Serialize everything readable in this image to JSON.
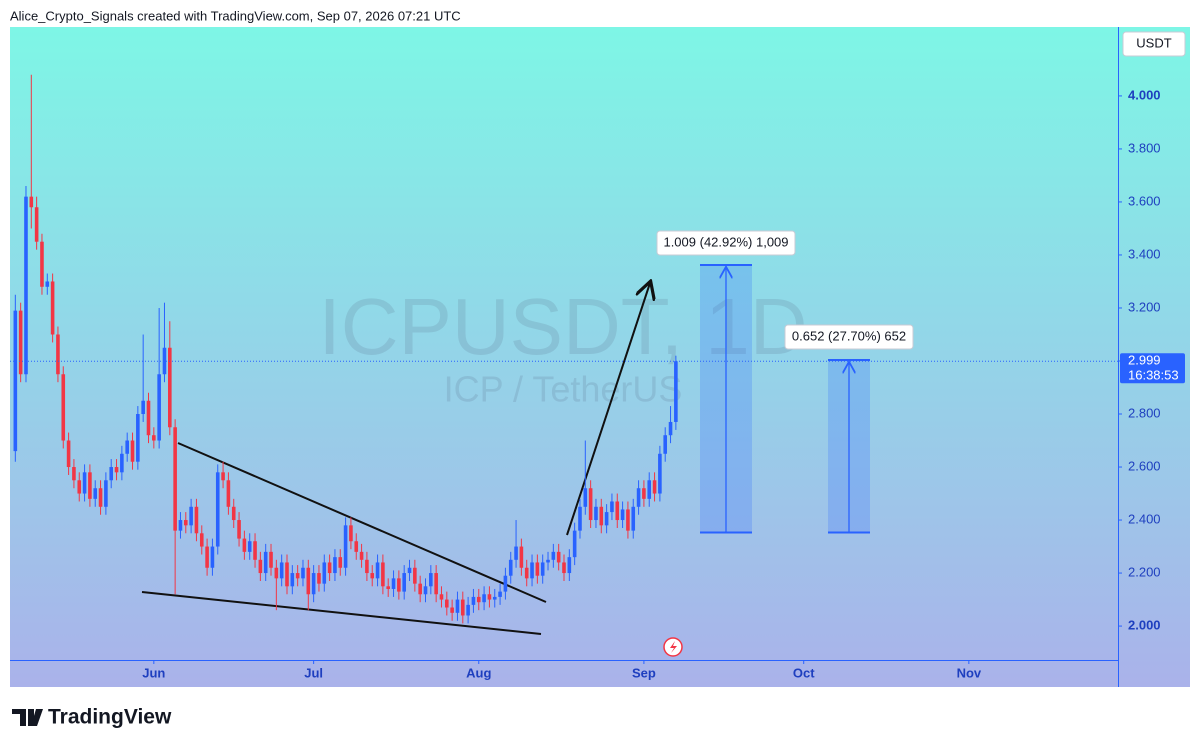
{
  "header": "Alice_Crypto_Signals created with TradingView.com, Sep 07, 2026 07:21 UTC",
  "logo": "TradingView",
  "chart_data": {
    "type": "candlestick",
    "title": "ICPUSDT, 1D",
    "subtitle": "ICP / TetherUS",
    "currency": "USDT",
    "up_color": "#2962ff",
    "down_color": "#f23645",
    "last_price": 2.999,
    "countdown": "16:38:53",
    "annotations": [
      "1.009 (42.92%) 1,009",
      "0.652 (27.70%) 652"
    ],
    "xlim": [
      0,
      208
    ],
    "xticks": [
      {
        "value": 27,
        "label": "Jun"
      },
      {
        "value": 57,
        "label": "Jul"
      },
      {
        "value": 88,
        "label": "Aug"
      },
      {
        "value": 119,
        "label": "Sep"
      },
      {
        "value": 149,
        "label": "Oct"
      },
      {
        "value": 180,
        "label": "Nov"
      }
    ],
    "ylim": [
      1.872,
      4.26
    ],
    "yticks": [
      {
        "value": 2,
        "label": "2.000"
      },
      {
        "value": 2.2,
        "label": "2.200"
      },
      {
        "value": 2.4,
        "label": "2.400"
      },
      {
        "value": 2.6,
        "label": "2.600"
      },
      {
        "value": 2.8,
        "label": "2.800"
      },
      {
        "value": 3,
        "label": "3.000"
      },
      {
        "value": 3.2,
        "label": "3.200"
      },
      {
        "value": 3.4,
        "label": "3.400"
      },
      {
        "value": 3.6,
        "label": "3.600"
      },
      {
        "value": 3.8,
        "label": "3.800"
      },
      {
        "value": 4,
        "label": "4.000"
      }
    ],
    "x": [
      1,
      2,
      3,
      4,
      5,
      6,
      7,
      8,
      9,
      10,
      11,
      12,
      13,
      14,
      15,
      16,
      17,
      18,
      19,
      20,
      21,
      22,
      23,
      24,
      25,
      26,
      27,
      28,
      29,
      30,
      31,
      32,
      33,
      34,
      35,
      36,
      37,
      38,
      39,
      40,
      41,
      42,
      43,
      44,
      45,
      46,
      47,
      48,
      49,
      50,
      51,
      52,
      53,
      54,
      55,
      56,
      57,
      58,
      59,
      60,
      61,
      62,
      63,
      64,
      65,
      66,
      67,
      68,
      69,
      70,
      71,
      72,
      73,
      74,
      75,
      76,
      77,
      78,
      79,
      80,
      81,
      82,
      83,
      84,
      85,
      86,
      87,
      88,
      89,
      90,
      91,
      92,
      93,
      94,
      95,
      96,
      97,
      98,
      99,
      100,
      101,
      102,
      103,
      104,
      105,
      106,
      107,
      108,
      109,
      110,
      111,
      112,
      113,
      114,
      115,
      116,
      117,
      118,
      119,
      120,
      121,
      122,
      123,
      124,
      125
    ],
    "ohlc": [
      [
        2.66,
        3.25,
        2.62,
        3.19
      ],
      [
        3.19,
        3.22,
        2.92,
        2.95
      ],
      [
        2.95,
        3.66,
        2.92,
        3.62
      ],
      [
        3.62,
        4.08,
        3.5,
        3.58
      ],
      [
        3.58,
        3.62,
        3.42,
        3.45
      ],
      [
        3.45,
        3.48,
        3.25,
        3.28
      ],
      [
        3.28,
        3.33,
        3.25,
        3.3
      ],
      [
        3.3,
        3.33,
        3.07,
        3.1
      ],
      [
        3.1,
        3.13,
        2.92,
        2.95
      ],
      [
        2.95,
        2.98,
        2.67,
        2.7
      ],
      [
        2.7,
        2.73,
        2.57,
        2.6
      ],
      [
        2.6,
        2.63,
        2.52,
        2.55
      ],
      [
        2.55,
        2.58,
        2.47,
        2.5
      ],
      [
        2.5,
        2.61,
        2.47,
        2.58
      ],
      [
        2.58,
        2.61,
        2.45,
        2.48
      ],
      [
        2.48,
        2.55,
        2.45,
        2.52
      ],
      [
        2.52,
        2.55,
        2.42,
        2.45
      ],
      [
        2.45,
        2.58,
        2.42,
        2.55
      ],
      [
        2.55,
        2.63,
        2.52,
        2.6
      ],
      [
        2.6,
        2.63,
        2.55,
        2.58
      ],
      [
        2.58,
        2.68,
        2.55,
        2.65
      ],
      [
        2.65,
        2.73,
        2.62,
        2.7
      ],
      [
        2.7,
        2.73,
        2.59,
        2.62
      ],
      [
        2.62,
        2.83,
        2.59,
        2.8
      ],
      [
        2.8,
        3.1,
        2.77,
        2.85
      ],
      [
        2.85,
        2.88,
        2.69,
        2.72
      ],
      [
        2.72,
        2.75,
        2.67,
        2.7
      ],
      [
        2.7,
        3.2,
        2.67,
        2.95
      ],
      [
        2.95,
        3.22,
        2.92,
        3.05
      ],
      [
        3.05,
        3.15,
        2.72,
        2.75
      ],
      [
        2.75,
        2.78,
        2.12,
        2.36
      ],
      [
        2.36,
        2.43,
        2.33,
        2.4
      ],
      [
        2.4,
        2.43,
        2.35,
        2.38
      ],
      [
        2.38,
        2.48,
        2.35,
        2.45
      ],
      [
        2.45,
        2.48,
        2.32,
        2.35
      ],
      [
        2.35,
        2.38,
        2.27,
        2.3
      ],
      [
        2.3,
        2.33,
        2.19,
        2.22
      ],
      [
        2.22,
        2.33,
        2.19,
        2.3
      ],
      [
        2.3,
        2.61,
        2.27,
        2.58
      ],
      [
        2.58,
        2.62,
        2.52,
        2.55
      ],
      [
        2.55,
        2.58,
        2.42,
        2.45
      ],
      [
        2.45,
        2.48,
        2.37,
        2.4
      ],
      [
        2.4,
        2.43,
        2.3,
        2.33
      ],
      [
        2.33,
        2.36,
        2.25,
        2.28
      ],
      [
        2.28,
        2.35,
        2.25,
        2.32
      ],
      [
        2.32,
        2.35,
        2.22,
        2.25
      ],
      [
        2.25,
        2.28,
        2.17,
        2.2
      ],
      [
        2.2,
        2.31,
        2.17,
        2.28
      ],
      [
        2.28,
        2.31,
        2.19,
        2.22
      ],
      [
        2.22,
        2.25,
        2.06,
        2.18
      ],
      [
        2.18,
        2.27,
        2.15,
        2.24
      ],
      [
        2.24,
        2.27,
        2.12,
        2.15
      ],
      [
        2.15,
        2.23,
        2.12,
        2.2
      ],
      [
        2.2,
        2.23,
        2.15,
        2.18
      ],
      [
        2.18,
        2.25,
        2.15,
        2.22
      ],
      [
        2.22,
        2.25,
        2.06,
        2.12
      ],
      [
        2.12,
        2.23,
        2.09,
        2.2
      ],
      [
        2.2,
        2.23,
        2.13,
        2.16
      ],
      [
        2.16,
        2.27,
        2.13,
        2.24
      ],
      [
        2.24,
        2.27,
        2.17,
        2.2
      ],
      [
        2.2,
        2.29,
        2.17,
        2.26
      ],
      [
        2.26,
        2.29,
        2.19,
        2.22
      ],
      [
        2.22,
        2.41,
        2.19,
        2.38
      ],
      [
        2.38,
        2.41,
        2.29,
        2.32
      ],
      [
        2.32,
        2.35,
        2.25,
        2.28
      ],
      [
        2.28,
        2.31,
        2.22,
        2.25
      ],
      [
        2.25,
        2.28,
        2.17,
        2.2
      ],
      [
        2.2,
        2.23,
        2.15,
        2.18
      ],
      [
        2.18,
        2.27,
        2.15,
        2.24
      ],
      [
        2.24,
        2.27,
        2.12,
        2.15
      ],
      [
        2.15,
        2.18,
        2.11,
        2.14
      ],
      [
        2.14,
        2.21,
        2.11,
        2.18
      ],
      [
        2.18,
        2.21,
        2.1,
        2.13
      ],
      [
        2.13,
        2.23,
        2.1,
        2.2
      ],
      [
        2.2,
        2.25,
        2.17,
        2.22
      ],
      [
        2.22,
        2.25,
        2.13,
        2.16
      ],
      [
        2.16,
        2.19,
        2.09,
        2.12
      ],
      [
        2.12,
        2.18,
        2.09,
        2.15
      ],
      [
        2.15,
        2.23,
        2.12,
        2.2
      ],
      [
        2.2,
        2.23,
        2.09,
        2.12
      ],
      [
        2.12,
        2.15,
        2.07,
        2.1
      ],
      [
        2.1,
        2.13,
        2.04,
        2.07
      ],
      [
        2.07,
        2.1,
        2.02,
        2.05
      ],
      [
        2.05,
        2.13,
        2.02,
        2.1
      ],
      [
        2.1,
        2.13,
        2.01,
        2.04
      ],
      [
        2.04,
        2.11,
        2.01,
        2.08
      ],
      [
        2.08,
        2.14,
        2.05,
        2.11
      ],
      [
        2.11,
        2.14,
        2.06,
        2.09
      ],
      [
        2.09,
        2.15,
        2.06,
        2.12
      ],
      [
        2.12,
        2.15,
        2.07,
        2.1
      ],
      [
        2.1,
        2.14,
        2.07,
        2.11
      ],
      [
        2.11,
        2.16,
        2.08,
        2.13
      ],
      [
        2.13,
        2.22,
        2.1,
        2.19
      ],
      [
        2.19,
        2.28,
        2.16,
        2.25
      ],
      [
        2.25,
        2.4,
        2.22,
        2.3
      ],
      [
        2.3,
        2.33,
        2.19,
        2.22
      ],
      [
        2.22,
        2.25,
        2.15,
        2.18
      ],
      [
        2.18,
        2.27,
        2.15,
        2.24
      ],
      [
        2.24,
        2.27,
        2.16,
        2.19
      ],
      [
        2.19,
        2.27,
        2.16,
        2.24
      ],
      [
        2.24,
        2.28,
        2.21,
        2.25
      ],
      [
        2.25,
        2.31,
        2.22,
        2.28
      ],
      [
        2.28,
        2.31,
        2.21,
        2.24
      ],
      [
        2.24,
        2.27,
        2.17,
        2.2
      ],
      [
        2.2,
        2.29,
        2.17,
        2.26
      ],
      [
        2.26,
        2.39,
        2.23,
        2.36
      ],
      [
        2.36,
        2.48,
        2.33,
        2.45
      ],
      [
        2.45,
        2.7,
        2.42,
        2.52
      ],
      [
        2.52,
        2.55,
        2.37,
        2.4
      ],
      [
        2.4,
        2.48,
        2.37,
        2.45
      ],
      [
        2.45,
        2.48,
        2.35,
        2.38
      ],
      [
        2.38,
        2.46,
        2.35,
        2.43
      ],
      [
        2.43,
        2.5,
        2.4,
        2.47
      ],
      [
        2.47,
        2.5,
        2.37,
        2.4
      ],
      [
        2.4,
        2.47,
        2.37,
        2.44
      ],
      [
        2.44,
        2.47,
        2.33,
        2.36
      ],
      [
        2.36,
        2.48,
        2.33,
        2.45
      ],
      [
        2.45,
        2.55,
        2.42,
        2.52
      ],
      [
        2.52,
        2.55,
        2.45,
        2.48
      ],
      [
        2.48,
        2.58,
        2.45,
        2.55
      ],
      [
        2.55,
        2.58,
        2.47,
        2.5
      ],
      [
        2.5,
        2.68,
        2.47,
        2.65
      ],
      [
        2.65,
        2.75,
        2.62,
        2.72
      ],
      [
        2.72,
        2.83,
        2.69,
        2.77
      ],
      [
        2.77,
        3.02,
        2.74,
        2.999
      ]
    ]
  }
}
